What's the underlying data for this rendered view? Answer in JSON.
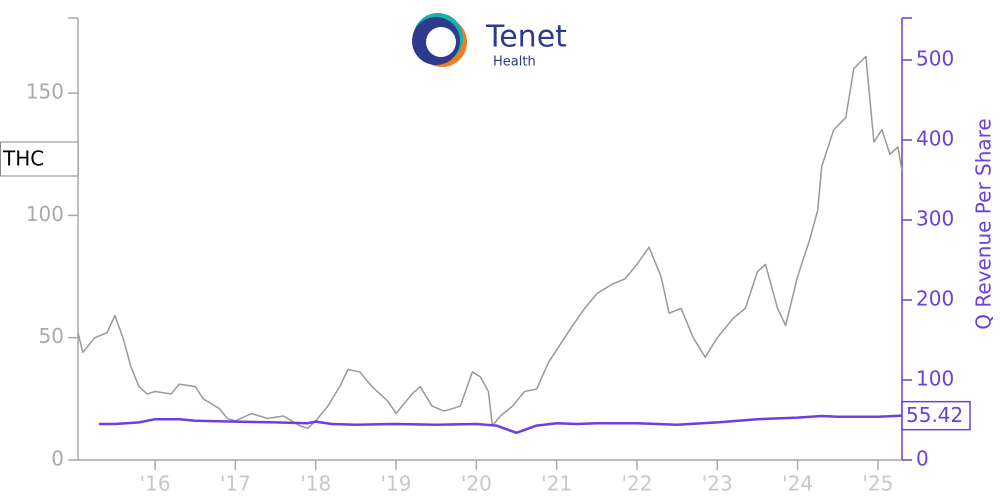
{
  "chart_data": {
    "type": "line",
    "logo": {
      "title": "Tenet",
      "subtitle": "Health"
    },
    "y2label": "Q Revenue Per Share",
    "xlim": [
      2015.04,
      2025.3
    ],
    "xticks": [
      {
        "value": 2016,
        "label": "'16"
      },
      {
        "value": 2017,
        "label": "'17"
      },
      {
        "value": 2018,
        "label": "'18"
      },
      {
        "value": 2019,
        "label": "'19"
      },
      {
        "value": 2020,
        "label": "'20"
      },
      {
        "value": 2021,
        "label": "'21"
      },
      {
        "value": 2022,
        "label": "'22"
      },
      {
        "value": 2023,
        "label": "'23"
      },
      {
        "value": 2024,
        "label": "'24"
      },
      {
        "value": 2025,
        "label": "'25"
      }
    ],
    "ylim": [
      0,
      180.7
    ],
    "yticks": [
      0,
      50,
      100,
      150
    ],
    "y2lim": [
      0,
      552.5
    ],
    "y2ticks": [
      0,
      100,
      200,
      300,
      400,
      500
    ],
    "axis_color": "#aaaaaa",
    "y2_color": "#6b3fe0",
    "series": [
      {
        "name": "THC",
        "color": "#999999",
        "x": [
          2015.04,
          2015.1,
          2015.25,
          2015.4,
          2015.5,
          2015.6,
          2015.7,
          2015.8,
          2015.9,
          2016.0,
          2016.2,
          2016.3,
          2016.5,
          2016.6,
          2016.8,
          2016.9,
          2017.0,
          2017.2,
          2017.4,
          2017.6,
          2017.8,
          2017.9,
          2018.0,
          2018.15,
          2018.3,
          2018.4,
          2018.55,
          2018.7,
          2018.9,
          2019.0,
          2019.2,
          2019.3,
          2019.45,
          2019.6,
          2019.8,
          2019.95,
          2020.05,
          2020.15,
          2020.2,
          2020.3,
          2020.45,
          2020.6,
          2020.75,
          2020.9,
          2021.0,
          2021.2,
          2021.35,
          2021.5,
          2021.7,
          2021.85,
          2022.0,
          2022.15,
          2022.3,
          2022.4,
          2022.55,
          2022.7,
          2022.85,
          2023.0,
          2023.2,
          2023.35,
          2023.5,
          2023.6,
          2023.75,
          2023.85,
          2024.0,
          2024.15,
          2024.25,
          2024.3,
          2024.45,
          2024.6,
          2024.7,
          2024.85,
          2024.95,
          2025.05,
          2025.15,
          2025.25,
          2025.3
        ],
        "values": [
          52,
          44,
          50,
          52,
          59,
          50,
          38,
          30,
          27,
          28,
          27,
          31,
          30,
          25,
          21,
          17,
          16,
          19,
          17,
          18,
          14,
          13,
          16,
          22,
          30,
          37,
          36,
          30,
          24,
          19,
          27,
          30,
          22,
          20,
          22,
          36,
          34,
          28,
          14,
          18,
          22,
          28,
          29,
          40,
          45,
          55,
          62,
          68,
          72,
          74,
          80,
          87,
          75,
          60,
          62,
          50,
          42,
          50,
          58,
          62,
          77,
          80,
          62,
          55,
          75,
          90,
          102,
          120,
          135,
          140,
          160,
          165,
          130,
          135,
          125,
          128,
          118
        ]
      },
      {
        "color": "#6b3fe0",
        "axis": "y2",
        "x": [
          2015.3,
          2015.5,
          2015.8,
          2016.0,
          2016.3,
          2016.5,
          2017.0,
          2017.5,
          2017.9,
          2018.0,
          2018.2,
          2018.5,
          2019.0,
          2019.5,
          2020.0,
          2020.25,
          2020.5,
          2020.75,
          2021.0,
          2021.25,
          2021.5,
          2022.0,
          2022.5,
          2023.0,
          2023.5,
          2024.0,
          2024.3,
          2024.5,
          2025.0,
          2025.3
        ],
        "values": [
          45,
          45,
          47,
          51,
          51,
          49,
          48,
          47,
          46,
          48,
          45,
          44,
          45,
          44,
          45,
          43,
          34,
          43,
          46,
          45,
          46,
          46,
          44,
          47,
          51,
          53,
          55,
          54,
          54,
          55.42
        ]
      }
    ]
  }
}
